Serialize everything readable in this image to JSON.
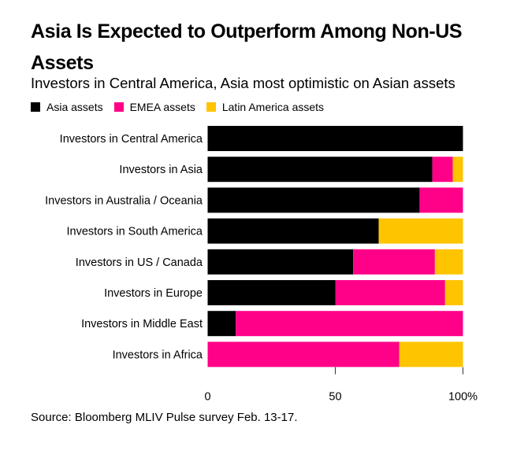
{
  "chart_data": {
    "type": "bar",
    "orientation": "horizontal",
    "stacked": true,
    "title": "Asia Is Expected to Outperform Among Non-US Assets",
    "subtitle": "Investors in Central America, Asia most optimistic on Asian assets",
    "categories": [
      "Investors in Central America",
      "Investors in Asia",
      "Investors in Australia / Oceania",
      "Investors in South America",
      "Investors in US / Canada",
      "Investors in Europe",
      "Investors in Middle East",
      "Investors in Africa"
    ],
    "series": [
      {
        "name": "Asia assets",
        "color": "#000000",
        "values": [
          100,
          88,
          83,
          67,
          57,
          50,
          11,
          0
        ]
      },
      {
        "name": "EMEA assets",
        "color": "#ff0088",
        "values": [
          0,
          8,
          17,
          0,
          32,
          43,
          89,
          75
        ]
      },
      {
        "name": "Latin America assets",
        "color": "#ffc400",
        "values": [
          0,
          4,
          0,
          33,
          11,
          7,
          0,
          25
        ]
      }
    ],
    "xlabel": "",
    "ylabel": "",
    "xlim": [
      0,
      100
    ],
    "xticks": [
      0,
      50,
      100
    ],
    "xtick_labels": [
      "0",
      "50",
      "100%"
    ],
    "legend_position": "top-left",
    "grid": false,
    "source": "Source: Bloomberg MLIV Pulse survey Feb. 13-17."
  }
}
